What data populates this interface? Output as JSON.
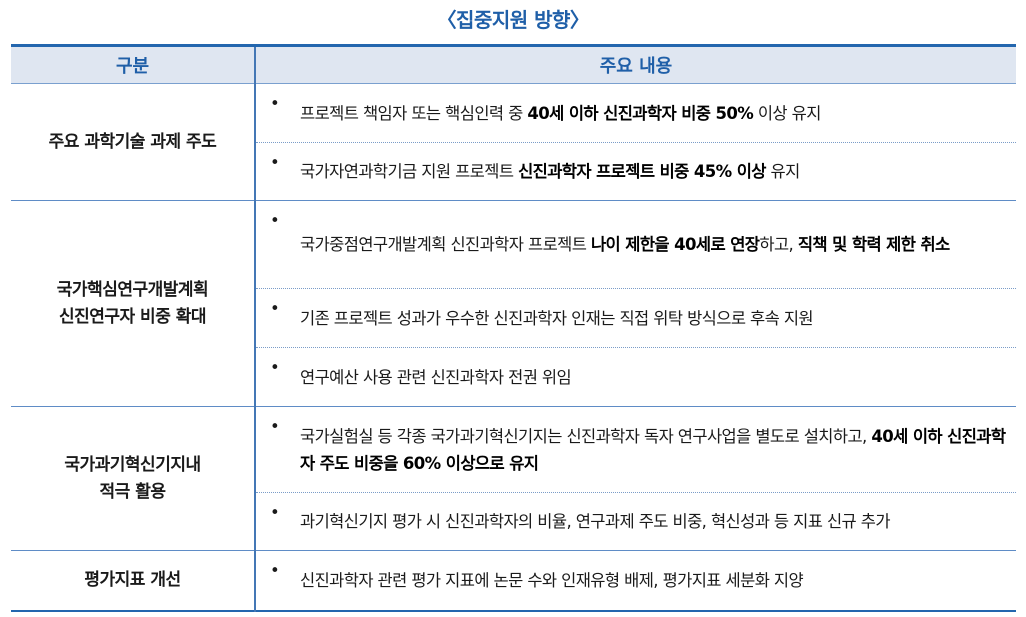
{
  "title": "〈집중지원 방향〉",
  "headers": {
    "category": "구분",
    "content": "주요 내용"
  },
  "groups": [
    {
      "category": [
        "주요 과학기술 과제 주도"
      ],
      "items": [
        [
          {
            "t": "프로젝트 책임자 또는 핵심인력 중 ",
            "b": false
          },
          {
            "t": "40세 이하 신진과학자 비중 50%",
            "b": true
          },
          {
            "t": " 이상 유지",
            "b": false
          }
        ],
        [
          {
            "t": "국가자연과학기금 지원 프로젝트  ",
            "b": false
          },
          {
            "t": "신진과학자 프로젝트 비중 45% 이상",
            "b": true
          },
          {
            "t": " 유지",
            "b": false
          }
        ]
      ]
    },
    {
      "category": [
        "국가핵심연구개발계획",
        "신진연구자 비중 확대"
      ],
      "items": [
        [
          {
            "t": "국가중점연구개발계획 신진과학자 프로젝트 ",
            "b": false
          },
          {
            "t": "나이 제한을 40세로 연장",
            "b": true
          },
          {
            "t": "하고, ",
            "b": false
          },
          {
            "t": "직책 및 학력 제한 취소",
            "b": true
          }
        ],
        [
          {
            "t": "기존 프로젝트 성과가 우수한 신진과학자 인재는 직접 위탁 방식으로 후속 지원",
            "b": false
          }
        ],
        [
          {
            "t": "연구예산 사용 관련 신진과학자 전권 위임",
            "b": false
          }
        ]
      ]
    },
    {
      "category": [
        "국가과기혁신기지내",
        "적극 활용"
      ],
      "items": [
        [
          {
            "t": "국가실험실 등 각종 국가과기혁신기지는 신진과학자 독자 연구사업을 별도로 설치하고, ",
            "b": false
          },
          {
            "t": "40세 이하 신진과학자 주도 비중을 60% 이상으로 유지",
            "b": true
          }
        ],
        [
          {
            "t": "과기혁신기지 평가 시 신진과학자의 비율, 연구과제 주도 비중, 혁신성과 등 지표 신규 추가",
            "b": false
          }
        ]
      ]
    },
    {
      "category": [
        "평가지표 개선"
      ],
      "items": [
        [
          {
            "t": "신진과학자 관련 평가 지표에 논문 수와 인재유형  배제,  평가지표 세분화 지양",
            "b": false
          }
        ]
      ]
    }
  ],
  "colors": {
    "accent": "#2366ae",
    "header_bg": "#dfe6f1"
  }
}
